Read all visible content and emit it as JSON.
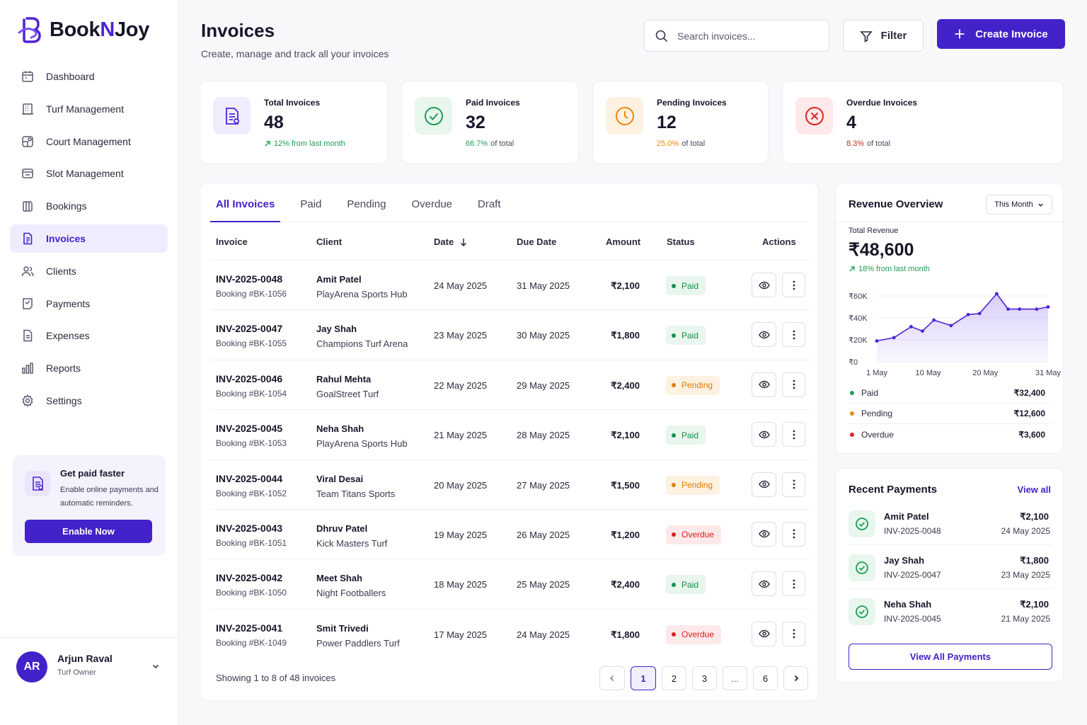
{
  "brand": {
    "prefix": "Book",
    "middle": "N",
    "suffix": "Joy"
  },
  "nav": [
    {
      "label": "Dashboard",
      "icon": "calendar-icon"
    },
    {
      "label": "Turf Management",
      "icon": "building-icon"
    },
    {
      "label": "Court Management",
      "icon": "court-icon"
    },
    {
      "label": "Slot Management",
      "icon": "slot-icon"
    },
    {
      "label": "Bookings",
      "icon": "bookings-icon"
    },
    {
      "label": "Invoices",
      "icon": "invoice-icon",
      "active": true
    },
    {
      "label": "Clients",
      "icon": "users-icon"
    },
    {
      "label": "Payments",
      "icon": "payments-icon"
    },
    {
      "label": "Expenses",
      "icon": "expenses-icon"
    },
    {
      "label": "Reports",
      "icon": "bar-chart-icon"
    },
    {
      "label": "Settings",
      "icon": "gear-icon"
    }
  ],
  "promo": {
    "title": "Get paid faster",
    "desc": "Enable online payments and automatic reminders.",
    "button": "Enable Now"
  },
  "user": {
    "initials": "AR",
    "name": "Arjun Raval",
    "role": "Turf Owner"
  },
  "header": {
    "title": "Invoices",
    "subtitle": "Create, manage and track all your invoices",
    "search_placeholder": "Search invoices...",
    "filter_label": "Filter",
    "create_label": "Create Invoice"
  },
  "stats": [
    {
      "label": "Total Invoices",
      "value": "48",
      "note_hl": "12% from last month",
      "note_rest": "",
      "tone": "purple"
    },
    {
      "label": "Paid Invoices",
      "value": "32",
      "note_hl": "66.7%",
      "note_rest": "of total",
      "tone": "green"
    },
    {
      "label": "Pending Invoices",
      "value": "12",
      "note_hl": "25.0%",
      "note_rest": "of total",
      "tone": "orange"
    },
    {
      "label": "Overdue Invoices",
      "value": "4",
      "note_hl": "8.3%",
      "note_rest": "of total",
      "tone": "red"
    }
  ],
  "tabs": [
    "All Invoices",
    "Paid",
    "Pending",
    "Overdue",
    "Draft"
  ],
  "columns": {
    "invoice": "Invoice",
    "client": "Client",
    "date": "Date",
    "due": "Due Date",
    "amount": "Amount",
    "status": "Status",
    "actions": "Actions"
  },
  "invoices": [
    {
      "id": "INV-2025-0048",
      "booking": "Booking #BK-1056",
      "client": "Amit Patel",
      "venue": "PlayArena Sports Hub",
      "date": "24 May 2025",
      "due": "31 May 2025",
      "amount": "₹2,100",
      "status": "Paid"
    },
    {
      "id": "INV-2025-0047",
      "booking": "Booking #BK-1055",
      "client": "Jay Shah",
      "venue": "Champions Turf Arena",
      "date": "23 May 2025",
      "due": "30 May 2025",
      "amount": "₹1,800",
      "status": "Paid"
    },
    {
      "id": "INV-2025-0046",
      "booking": "Booking #BK-1054",
      "client": "Rahul Mehta",
      "venue": "GoalStreet Turf",
      "date": "22 May 2025",
      "due": "29 May 2025",
      "amount": "₹2,400",
      "status": "Pending"
    },
    {
      "id": "INV-2025-0045",
      "booking": "Booking #BK-1053",
      "client": "Neha Shah",
      "venue": "PlayArena Sports Hub",
      "date": "21 May 2025",
      "due": "28 May 2025",
      "amount": "₹2,100",
      "status": "Paid"
    },
    {
      "id": "INV-2025-0044",
      "booking": "Booking #BK-1052",
      "client": "Viral Desai",
      "venue": "Team Titans Sports",
      "date": "20 May 2025",
      "due": "27 May 2025",
      "amount": "₹1,500",
      "status": "Pending"
    },
    {
      "id": "INV-2025-0043",
      "booking": "Booking #BK-1051",
      "client": "Dhruv Patel",
      "venue": "Kick Masters Turf",
      "date": "19 May 2025",
      "due": "26 May 2025",
      "amount": "₹1,200",
      "status": "Overdue"
    },
    {
      "id": "INV-2025-0042",
      "booking": "Booking #BK-1050",
      "client": "Meet Shah",
      "venue": "Night Footballers",
      "date": "18 May 2025",
      "due": "25 May 2025",
      "amount": "₹2,400",
      "status": "Paid"
    },
    {
      "id": "INV-2025-0041",
      "booking": "Booking #BK-1049",
      "client": "Smit Trivedi",
      "venue": "Power Paddlers Turf",
      "date": "17 May 2025",
      "due": "24 May 2025",
      "amount": "₹1,800",
      "status": "Overdue"
    }
  ],
  "pagination": {
    "showing": "Showing 1 to 8 of 48 invoices",
    "pages": [
      "1",
      "2",
      "3",
      "...",
      "6"
    ],
    "current": "1"
  },
  "revenue": {
    "title": "Revenue Overview",
    "period": "This Month",
    "total_label": "Total Revenue",
    "total": "₹48,600",
    "change": "18% from last month",
    "legend": [
      {
        "label": "Paid",
        "value": "₹32,400",
        "color": "#1f9d55"
      },
      {
        "label": "Pending",
        "value": "₹12,600",
        "color": "#e8890c"
      },
      {
        "label": "Overdue",
        "value": "₹3,600",
        "color": "#dc2626"
      }
    ]
  },
  "chart_data": {
    "type": "area",
    "x_ticks": [
      "1 May",
      "10 May",
      "20 May",
      "31 May"
    ],
    "y_ticks": [
      "₹0",
      "₹20K",
      "₹40K",
      "₹60K"
    ],
    "ylim": [
      0,
      60000
    ],
    "x": [
      1,
      4,
      7,
      9,
      11,
      14,
      17,
      19,
      22,
      24,
      26,
      29,
      31
    ],
    "values": [
      19000,
      22000,
      32000,
      28000,
      38000,
      33000,
      43000,
      44000,
      62000,
      48000,
      48000,
      48000,
      50000
    ]
  },
  "payments": {
    "title": "Recent Payments",
    "view_all": "View all",
    "items": [
      {
        "name": "Amit Patel",
        "invoice": "INV-2025-0048",
        "amount": "₹2,100",
        "date": "24 May 2025"
      },
      {
        "name": "Jay Shah",
        "invoice": "INV-2025-0047",
        "amount": "₹1,800",
        "date": "23 May 2025"
      },
      {
        "name": "Neha Shah",
        "invoice": "INV-2025-0045",
        "amount": "₹2,100",
        "date": "21 May 2025"
      }
    ],
    "button": "View All Payments"
  },
  "colors": {
    "accent": "#4322c9",
    "paid": "#1a8c4a",
    "pending": "#e07d06",
    "overdue": "#d92020"
  }
}
